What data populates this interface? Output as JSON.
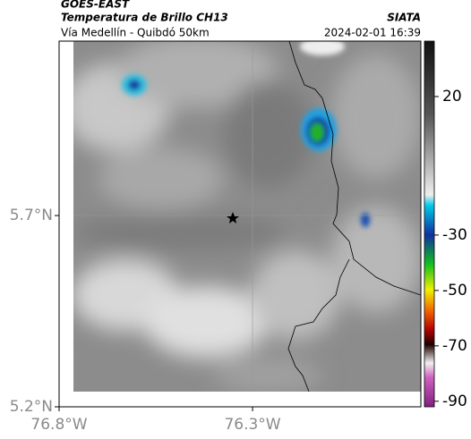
{
  "header": {
    "source": "GOES-EAST",
    "title": "Temperatura de Brillo CH13",
    "agency": "SIATA",
    "subtitle": "Vía Medellín - Quibdó 50km",
    "timestamp": "2024-02-01 16:39"
  },
  "map": {
    "lat_lim": [
      5.2,
      6.156
    ],
    "lon_lim": [
      -76.8,
      -75.865
    ],
    "lat_ticks": [
      {
        "value": 5.7,
        "label": "5.7°N"
      },
      {
        "value": 5.2,
        "label": "5.2°N"
      }
    ],
    "lon_ticks": [
      {
        "value": -76.8,
        "label": "76.8°W"
      },
      {
        "value": -76.3,
        "label": "76.3°W"
      }
    ]
  },
  "colorbar": {
    "lim": [
      -92,
      40
    ],
    "ticks": [
      20,
      -30,
      -50,
      -70,
      -90
    ]
  }
}
